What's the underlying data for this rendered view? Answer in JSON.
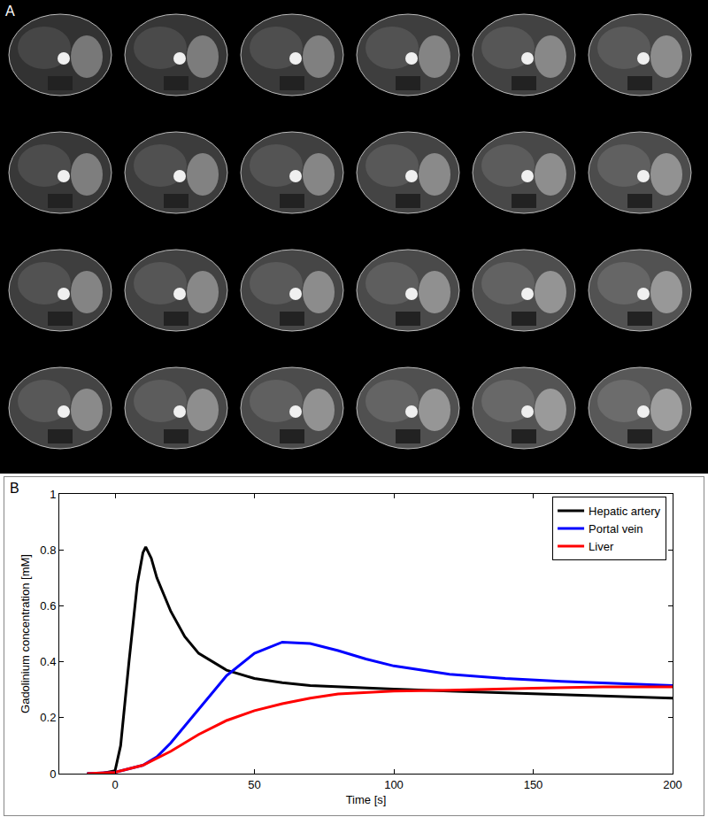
{
  "panel_labels": [
    "A",
    "B"
  ],
  "chart_data": {
    "type": "line",
    "x_label": "Time [s]",
    "y_label": "Gadolinium concentration [mM]",
    "xlim": [
      -20,
      200
    ],
    "xticks": [
      0,
      50,
      100,
      150,
      200
    ],
    "ylim": [
      0,
      1
    ],
    "yticks": [
      0,
      0.2,
      0.4,
      0.6,
      0.8,
      1
    ],
    "grid": false,
    "legend": "upper right",
    "series": [
      {
        "name": "Hepatic artery",
        "color": "#000000",
        "x": [
          -10,
          -5,
          0,
          2,
          5,
          8,
          10,
          11,
          13,
          15,
          20,
          25,
          30,
          40,
          50,
          60,
          70,
          80,
          100,
          120,
          150,
          175,
          200
        ],
        "values": [
          0,
          0,
          0.01,
          0.1,
          0.4,
          0.68,
          0.79,
          0.81,
          0.77,
          0.7,
          0.58,
          0.49,
          0.43,
          0.37,
          0.34,
          0.325,
          0.315,
          0.31,
          0.302,
          0.295,
          0.285,
          0.278,
          0.27
        ]
      },
      {
        "name": "Portal vein",
        "color": "#0000ff",
        "x": [
          -10,
          0,
          10,
          15,
          20,
          30,
          40,
          50,
          60,
          70,
          80,
          90,
          100,
          120,
          140,
          160,
          180,
          200
        ],
        "values": [
          0,
          0.005,
          0.03,
          0.06,
          0.11,
          0.23,
          0.35,
          0.43,
          0.47,
          0.465,
          0.44,
          0.41,
          0.385,
          0.355,
          0.34,
          0.33,
          0.322,
          0.315
        ]
      },
      {
        "name": "Liver",
        "color": "#ff0000",
        "x": [
          -10,
          0,
          10,
          20,
          30,
          40,
          50,
          60,
          70,
          80,
          100,
          120,
          150,
          175,
          200
        ],
        "values": [
          0,
          0.005,
          0.03,
          0.08,
          0.14,
          0.19,
          0.225,
          0.25,
          0.27,
          0.285,
          0.295,
          0.298,
          0.305,
          0.31,
          0.31
        ]
      }
    ]
  }
}
